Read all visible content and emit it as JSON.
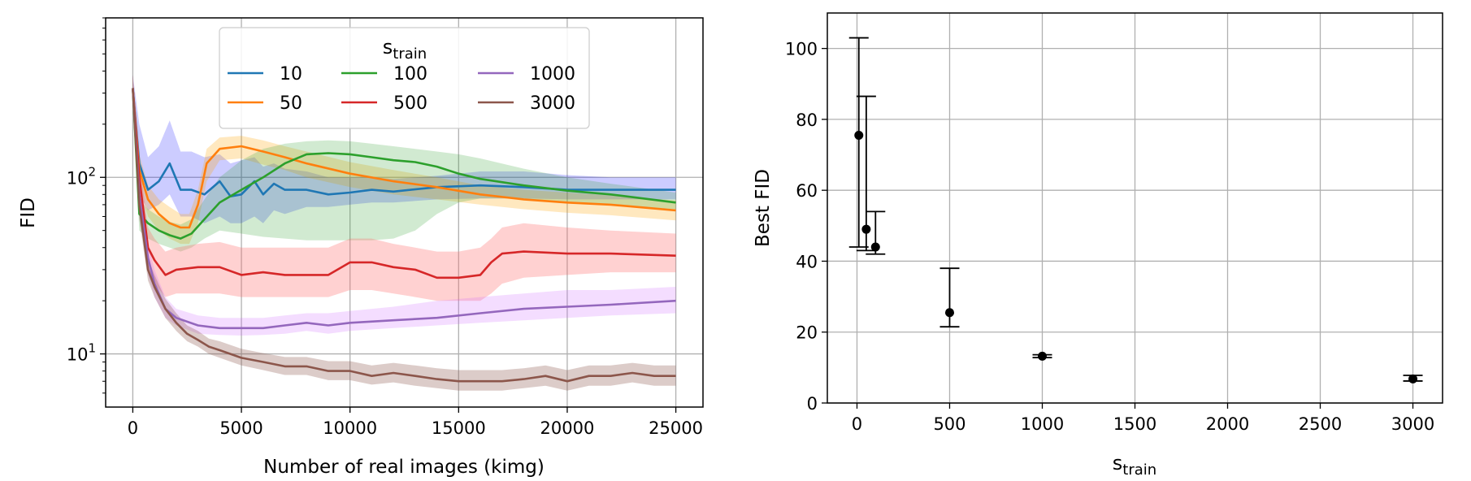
{
  "chart_data": [
    {
      "type": "line",
      "xlabel": "Number of real images (kimg)",
      "ylabel": "FID",
      "yscale": "log",
      "xlim": [
        -1250,
        26250
      ],
      "ylim": [
        5,
        800
      ],
      "xticks": [
        0,
        5000,
        10000,
        15000,
        20000,
        25000
      ],
      "xtick_labels": [
        "0",
        "5000",
        "10000",
        "15000",
        "20000",
        "25000"
      ],
      "yticks": [
        10,
        100
      ],
      "ytick_label_base": "10",
      "ytick_label_exps": [
        "1",
        "2"
      ],
      "grid": true,
      "legend": {
        "title_main": "s",
        "title_sub": "train",
        "placement": "upper-center",
        "columns": 3
      },
      "series": [
        {
          "name": "10",
          "color": "#1f77b4",
          "band_color": "#0000ff",
          "band_alpha": 0.2,
          "x": [
            0,
            300,
            700,
            1200,
            1700,
            2200,
            2700,
            3300,
            4000,
            4500,
            5000,
            5600,
            6000,
            6500,
            7000,
            8000,
            9000,
            10000,
            11000,
            12000,
            14000,
            16000,
            18000,
            20000,
            22000,
            25000
          ],
          "y": [
            320,
            120,
            85,
            95,
            120,
            85,
            85,
            80,
            95,
            78,
            80,
            95,
            80,
            92,
            85,
            85,
            80,
            82,
            85,
            83,
            88,
            90,
            88,
            85,
            85,
            85
          ],
          "lo": [
            250,
            80,
            65,
            70,
            80,
            60,
            60,
            55,
            60,
            55,
            55,
            60,
            55,
            65,
            62,
            68,
            68,
            70,
            72,
            72,
            75,
            76,
            76,
            75,
            75,
            75
          ],
          "hi": [
            380,
            200,
            130,
            150,
            210,
            140,
            140,
            130,
            135,
            120,
            125,
            130,
            115,
            120,
            112,
            108,
            100,
            100,
            100,
            98,
            102,
            108,
            108,
            103,
            100,
            100
          ]
        },
        {
          "name": "50",
          "color": "#ff7f0e",
          "band_color": "#ffa500",
          "band_alpha": 0.25,
          "x": [
            0,
            300,
            700,
            1200,
            1700,
            2200,
            2600,
            3000,
            3400,
            4000,
            5000,
            6000,
            7000,
            8000,
            10000,
            12000,
            14000,
            16000,
            18000,
            20000,
            22000,
            25000
          ],
          "y": [
            320,
            110,
            75,
            62,
            55,
            52,
            52,
            70,
            120,
            145,
            150,
            140,
            130,
            120,
            105,
            95,
            88,
            80,
            75,
            72,
            70,
            65
          ],
          "lo": [
            260,
            90,
            60,
            50,
            45,
            42,
            42,
            55,
            95,
            125,
            128,
            118,
            110,
            100,
            88,
            80,
            75,
            70,
            66,
            63,
            61,
            57
          ],
          "hi": [
            380,
            135,
            90,
            75,
            68,
            62,
            62,
            85,
            145,
            168,
            172,
            162,
            150,
            140,
            122,
            110,
            100,
            90,
            85,
            82,
            79,
            74
          ]
        },
        {
          "name": "100",
          "color": "#2ca02c",
          "band_color": "#2ca02c",
          "band_alpha": 0.22,
          "x": [
            0,
            300,
            700,
            1200,
            1700,
            2200,
            2700,
            3300,
            4000,
            5000,
            6000,
            7000,
            8000,
            9000,
            10000,
            11000,
            12000,
            13000,
            14000,
            15000,
            16000,
            18000,
            20000,
            22000,
            25000
          ],
          "y": [
            320,
            62,
            55,
            50,
            47,
            45,
            48,
            58,
            72,
            85,
            100,
            120,
            135,
            137,
            135,
            130,
            125,
            122,
            115,
            105,
            98,
            90,
            84,
            80,
            72
          ],
          "lo": [
            260,
            50,
            45,
            42,
            40,
            38,
            40,
            45,
            50,
            48,
            46,
            45,
            44,
            44,
            44,
            44,
            45,
            50,
            62,
            72,
            76,
            76,
            72,
            70,
            66
          ],
          "hi": [
            380,
            75,
            66,
            60,
            56,
            54,
            58,
            75,
            100,
            125,
            145,
            155,
            160,
            162,
            160,
            155,
            150,
            145,
            140,
            135,
            128,
            112,
            100,
            92,
            82
          ]
        },
        {
          "name": "500",
          "color": "#d62728",
          "band_color": "#ff6666",
          "band_alpha": 0.3,
          "x": [
            0,
            300,
            700,
            1000,
            1500,
            2000,
            3000,
            4000,
            5000,
            6000,
            7000,
            8000,
            9000,
            10000,
            11000,
            12000,
            13000,
            14000,
            15000,
            16000,
            16500,
            17000,
            18000,
            20000,
            22000,
            25000
          ],
          "y": [
            320,
            100,
            40,
            34,
            28,
            30,
            31,
            31,
            28,
            29,
            28,
            28,
            28,
            33,
            33,
            31,
            30,
            27,
            27,
            28,
            33,
            37,
            38,
            37,
            37,
            36
          ],
          "lo": [
            260,
            80,
            30,
            25,
            21,
            22,
            22,
            22,
            21,
            21,
            21,
            21,
            21,
            23,
            23,
            22,
            21,
            20,
            20,
            20,
            22,
            25,
            27,
            28,
            29,
            29
          ],
          "hi": [
            380,
            125,
            52,
            45,
            38,
            40,
            42,
            43,
            40,
            40,
            40,
            40,
            40,
            45,
            45,
            42,
            40,
            38,
            38,
            40,
            45,
            52,
            55,
            52,
            50,
            48
          ]
        },
        {
          "name": "1000",
          "color": "#9467bd",
          "band_color": "#cc66ff",
          "band_alpha": 0.22,
          "x": [
            0,
            300,
            700,
            1000,
            1500,
            2000,
            3000,
            4000,
            5000,
            6000,
            7000,
            8000,
            9000,
            10000,
            12000,
            14000,
            16000,
            18000,
            20000,
            22000,
            25000
          ],
          "y": [
            320,
            80,
            35,
            25,
            18,
            16,
            14.5,
            14,
            14,
            14,
            14.5,
            15,
            14.5,
            15,
            15.5,
            16,
            17,
            18,
            18.5,
            19,
            20
          ],
          "lo": [
            260,
            65,
            28,
            21,
            16,
            14.5,
            13,
            12.8,
            12.7,
            12.8,
            13,
            13.5,
            13,
            13.5,
            14,
            14.5,
            15,
            15.5,
            16,
            16.5,
            17
          ],
          "hi": [
            380,
            95,
            42,
            30,
            21,
            18,
            16.5,
            16,
            16,
            16,
            16.5,
            17,
            17,
            17.5,
            18.5,
            20,
            21,
            22,
            23,
            23,
            24
          ]
        },
        {
          "name": "3000",
          "color": "#8c564b",
          "band_color": "#8c564b",
          "band_alpha": 0.3,
          "x": [
            0,
            300,
            700,
            1000,
            1500,
            2000,
            2500,
            3000,
            3500,
            4000,
            5000,
            6000,
            7000,
            8000,
            9000,
            10000,
            11000,
            12000,
            13000,
            14000,
            15000,
            16000,
            17000,
            18000,
            19000,
            20000,
            21000,
            22000,
            23000,
            24000,
            25000
          ],
          "y": [
            320,
            70,
            30,
            24,
            18,
            15,
            13,
            12,
            11,
            10.5,
            9.5,
            9,
            8.5,
            8.5,
            8,
            8,
            7.5,
            7.8,
            7.5,
            7.2,
            7,
            7,
            7,
            7.2,
            7.5,
            7,
            7.5,
            7.5,
            7.8,
            7.5,
            7.5
          ],
          "lo": [
            260,
            58,
            26,
            21,
            16,
            13.5,
            11.8,
            11,
            10,
            9.5,
            8.6,
            8.1,
            7.6,
            7.6,
            7.1,
            7.1,
            6.7,
            6.9,
            6.6,
            6.4,
            6.2,
            6.2,
            6.2,
            6.4,
            6.6,
            6.2,
            6.6,
            6.6,
            6.9,
            6.6,
            6.6
          ],
          "hi": [
            380,
            85,
            35,
            28,
            20.5,
            17,
            14.5,
            13.5,
            12.2,
            11.8,
            10.7,
            10.1,
            9.6,
            9.6,
            9.1,
            9.1,
            8.6,
            8.9,
            8.6,
            8.3,
            8.1,
            8.1,
            8.1,
            8.3,
            8.6,
            8.1,
            8.6,
            8.6,
            8.9,
            8.6,
            8.6
          ]
        }
      ]
    },
    {
      "type": "scatter",
      "xlabel_main": "s",
      "xlabel_sub": "train",
      "ylabel": "Best FID",
      "xlim": [
        -160,
        3160
      ],
      "ylim": [
        0,
        110
      ],
      "xticks": [
        0,
        500,
        1000,
        1500,
        2000,
        2500,
        3000
      ],
      "xtick_labels": [
        "0",
        "500",
        "1000",
        "1500",
        "2000",
        "2500",
        "3000"
      ],
      "yticks": [
        0,
        20,
        40,
        60,
        80,
        100
      ],
      "ytick_labels": [
        "0",
        "20",
        "40",
        "60",
        "80",
        "100"
      ],
      "grid": true,
      "marker_color": "#000000",
      "points": [
        {
          "x": 10,
          "y": 75.5,
          "lo": 44,
          "hi": 103
        },
        {
          "x": 50,
          "y": 49,
          "lo": 43,
          "hi": 86.5
        },
        {
          "x": 100,
          "y": 44,
          "lo": 42,
          "hi": 54
        },
        {
          "x": 500,
          "y": 25.5,
          "lo": 21.5,
          "hi": 38
        },
        {
          "x": 1000,
          "y": 13.2,
          "lo": 12.8,
          "hi": 13.6
        },
        {
          "x": 3000,
          "y": 6.8,
          "lo": 6.2,
          "hi": 7.8
        }
      ]
    }
  ]
}
